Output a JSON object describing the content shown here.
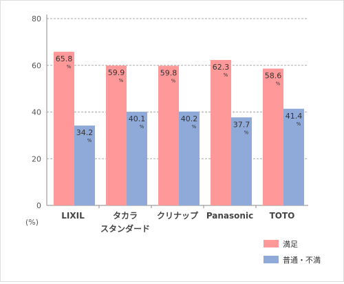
{
  "chart_data": {
    "type": "bar",
    "categories": [
      [
        "LIXIL"
      ],
      [
        "タカラ",
        "スタンダード"
      ],
      [
        "クリナップ"
      ],
      [
        "Panasonic"
      ],
      [
        "TOTO"
      ]
    ],
    "series": [
      {
        "name": "満足",
        "color": "#ff9999",
        "values": [
          65.8,
          59.9,
          59.8,
          62.3,
          58.6
        ]
      },
      {
        "name": "普通・不満",
        "color": "#8fa9d8",
        "values": [
          34.2,
          40.1,
          40.2,
          37.7,
          41.4
        ]
      }
    ],
    "ylim": [
      0,
      80
    ],
    "yticks": [
      0,
      20,
      40,
      60,
      80
    ],
    "ylabel": "(%)",
    "value_unit": "%",
    "grid": true,
    "legend_position": "bottom-right"
  }
}
